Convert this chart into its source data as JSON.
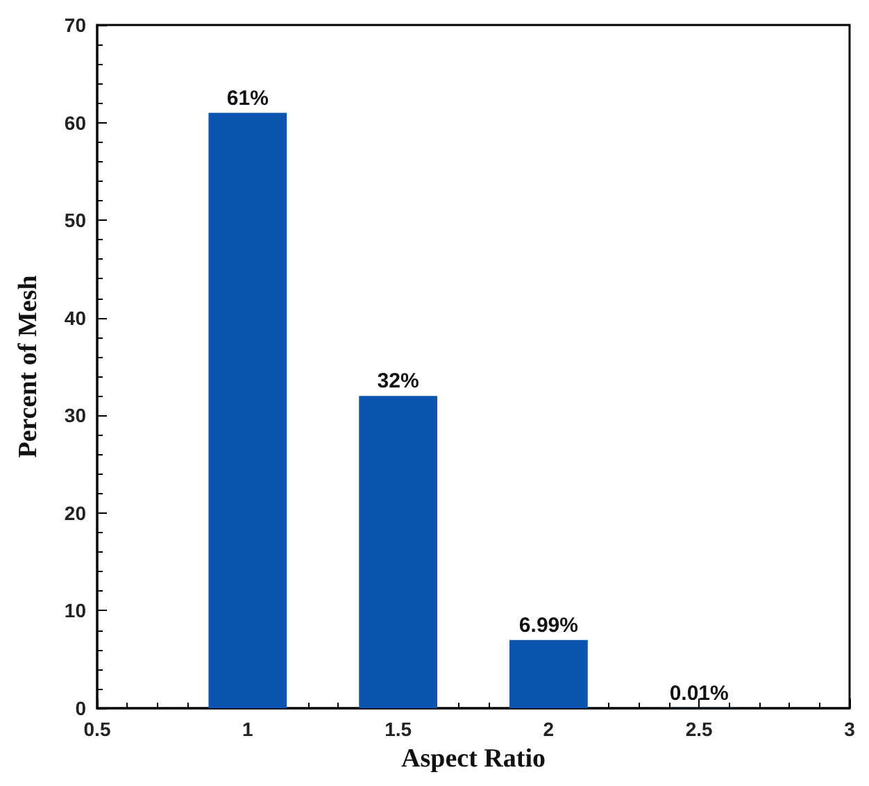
{
  "chart_data": {
    "type": "bar",
    "xlabel": "Aspect Ratio",
    "ylabel": "Percent of Mesh",
    "x": [
      1,
      1.5,
      2,
      2.5
    ],
    "values": [
      61,
      32,
      6.99,
      0.01
    ],
    "color": "#0b55b0",
    "value_labels": [
      "61%",
      "32%",
      "6.99%",
      "0.01%"
    ],
    "xlim": [
      0.5,
      3
    ],
    "xticks": [
      0.5,
      1,
      1.5,
      2,
      2.5,
      3
    ],
    "ylim": [
      0,
      70
    ],
    "yticks": [
      0,
      10,
      20,
      30,
      40,
      50,
      60,
      70
    ],
    "grid": false
  }
}
